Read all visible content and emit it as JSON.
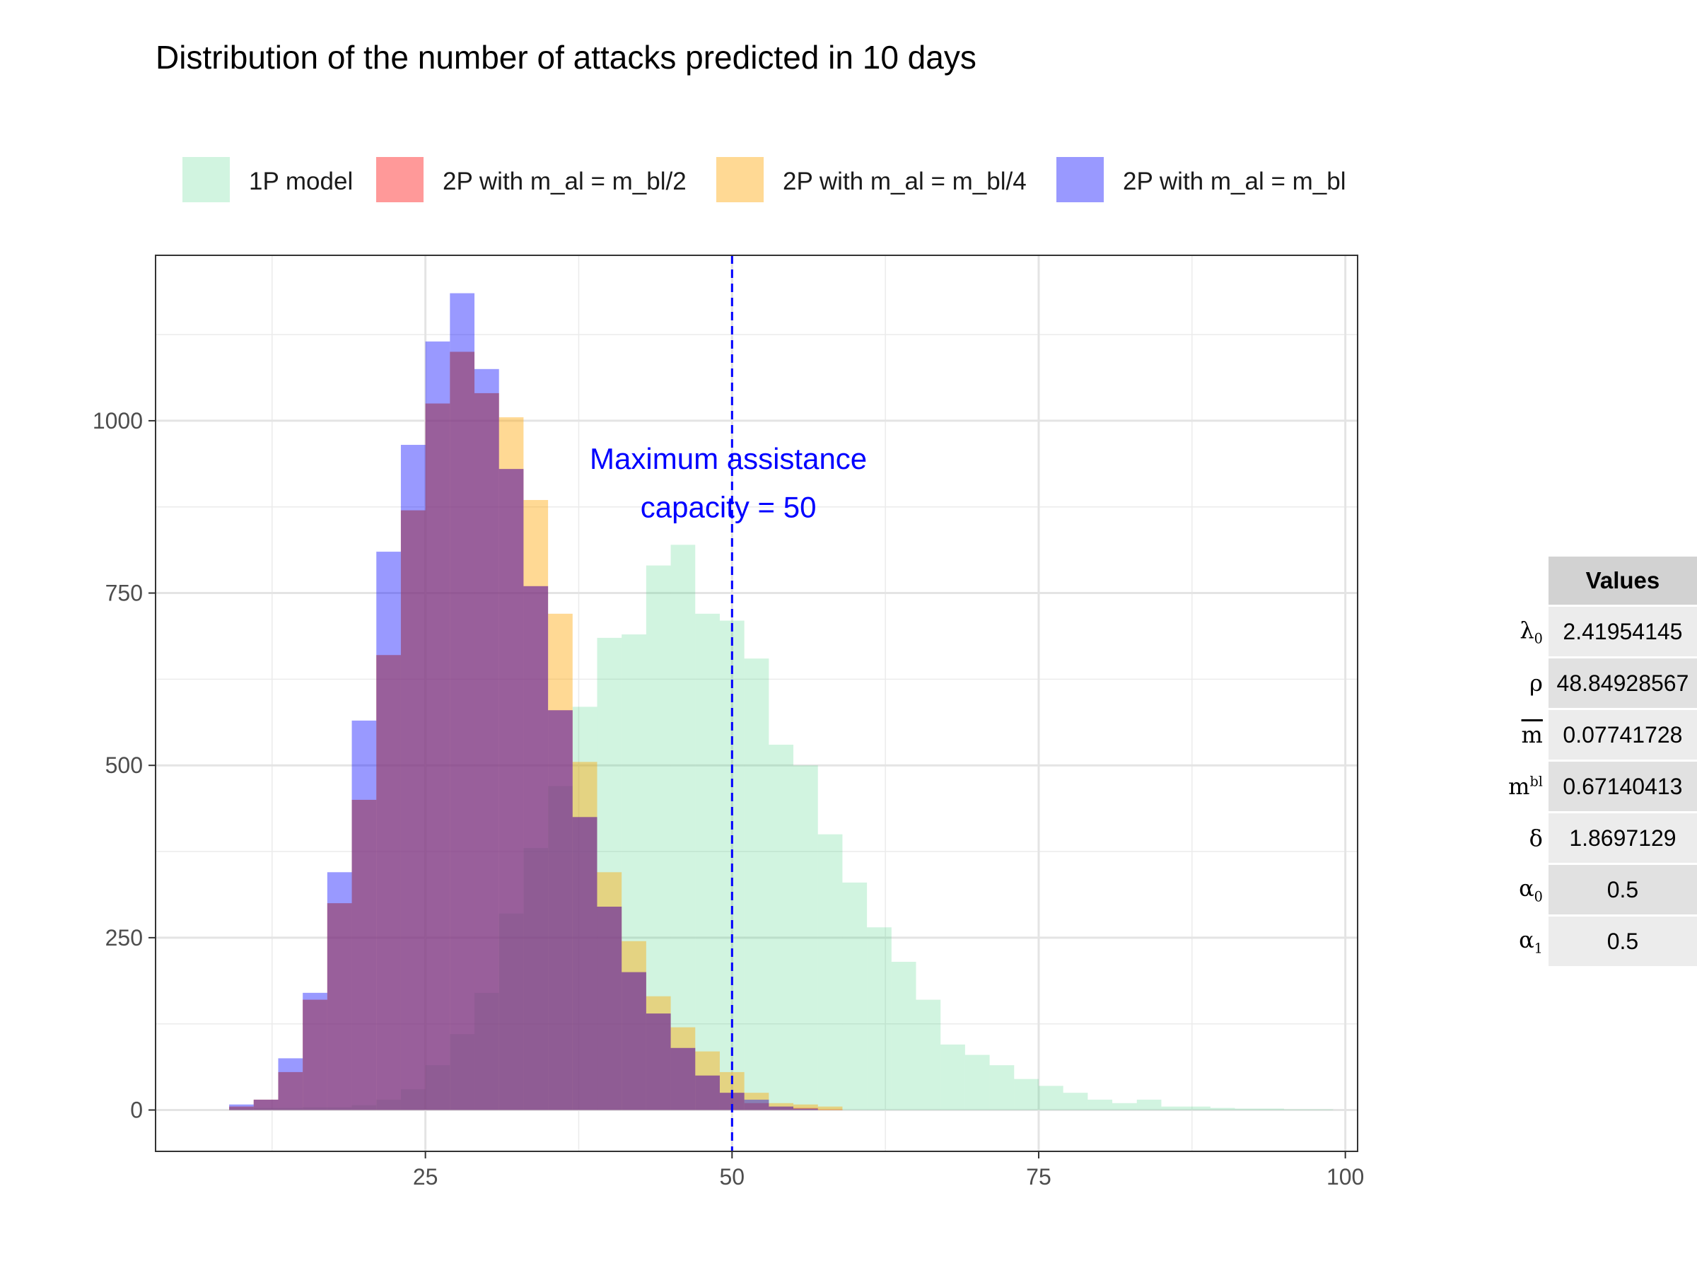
{
  "chart_data": {
    "type": "histogram",
    "title": "Distribution of the number of attacks predicted in 10 days",
    "xlabel": "",
    "ylabel": "",
    "xlim": [
      3,
      101
    ],
    "ylim": [
      -60,
      1240
    ],
    "x_ticks": [
      25,
      50,
      75,
      100
    ],
    "y_ticks": [
      0,
      250,
      500,
      750,
      1000
    ],
    "bin_width": 2,
    "legend_position": "top",
    "grid": true,
    "series": [
      {
        "name": "1P model",
        "color": "#2ecc71",
        "opacity": 0.22,
        "bins": [
          [
            10,
            2
          ],
          [
            12,
            3
          ],
          [
            14,
            3
          ],
          [
            16,
            4
          ],
          [
            18,
            4
          ],
          [
            20,
            7
          ],
          [
            22,
            15
          ],
          [
            24,
            30
          ],
          [
            26,
            65
          ],
          [
            28,
            110
          ],
          [
            30,
            170
          ],
          [
            32,
            285
          ],
          [
            34,
            380
          ],
          [
            36,
            470
          ],
          [
            38,
            585
          ],
          [
            40,
            685
          ],
          [
            42,
            690
          ],
          [
            44,
            790
          ],
          [
            46,
            820
          ],
          [
            48,
            720
          ],
          [
            50,
            710
          ],
          [
            52,
            655
          ],
          [
            54,
            530
          ],
          [
            56,
            500
          ],
          [
            58,
            400
          ],
          [
            60,
            330
          ],
          [
            62,
            265
          ],
          [
            64,
            215
          ],
          [
            66,
            160
          ],
          [
            68,
            95
          ],
          [
            70,
            80
          ],
          [
            72,
            65
          ],
          [
            74,
            45
          ],
          [
            76,
            35
          ],
          [
            78,
            25
          ],
          [
            80,
            15
          ],
          [
            82,
            10
          ],
          [
            84,
            15
          ],
          [
            86,
            5
          ],
          [
            88,
            5
          ],
          [
            90,
            3
          ],
          [
            92,
            2
          ],
          [
            94,
            2
          ],
          [
            96,
            1
          ],
          [
            98,
            1
          ]
        ]
      },
      {
        "name": "2P with m_al = m_bl/2",
        "color": "#ff0000",
        "opacity": 0.4,
        "bins": [
          [
            10,
            5
          ],
          [
            12,
            15
          ],
          [
            14,
            55
          ],
          [
            16,
            160
          ],
          [
            18,
            300
          ],
          [
            20,
            450
          ],
          [
            22,
            660
          ],
          [
            24,
            870
          ],
          [
            26,
            1025
          ],
          [
            28,
            1100
          ],
          [
            30,
            1040
          ],
          [
            32,
            930
          ],
          [
            34,
            760
          ],
          [
            36,
            580
          ],
          [
            38,
            425
          ],
          [
            40,
            295
          ],
          [
            42,
            200
          ],
          [
            44,
            140
          ],
          [
            46,
            90
          ],
          [
            48,
            50
          ],
          [
            50,
            25
          ],
          [
            52,
            10
          ],
          [
            54,
            5
          ],
          [
            56,
            3
          ],
          [
            58,
            1
          ]
        ]
      },
      {
        "name": "2P with m_al = m_bl/4",
        "color": "#ffa500",
        "opacity": 0.42,
        "bins": [
          [
            10,
            5
          ],
          [
            12,
            15
          ],
          [
            14,
            55
          ],
          [
            16,
            160
          ],
          [
            18,
            300
          ],
          [
            20,
            450
          ],
          [
            22,
            660
          ],
          [
            24,
            870
          ],
          [
            26,
            1025
          ],
          [
            28,
            1100
          ],
          [
            30,
            1040
          ],
          [
            32,
            1005
          ],
          [
            34,
            885
          ],
          [
            36,
            720
          ],
          [
            38,
            505
          ],
          [
            40,
            345
          ],
          [
            42,
            245
          ],
          [
            44,
            165
          ],
          [
            46,
            120
          ],
          [
            48,
            85
          ],
          [
            50,
            55
          ],
          [
            52,
            25
          ],
          [
            54,
            10
          ],
          [
            56,
            8
          ],
          [
            58,
            5
          ]
        ]
      },
      {
        "name": "2P with m_al = m_bl",
        "color": "#0000ff",
        "opacity": 0.4,
        "bins": [
          [
            10,
            8
          ],
          [
            12,
            15
          ],
          [
            14,
            75
          ],
          [
            16,
            170
          ],
          [
            18,
            345
          ],
          [
            20,
            565
          ],
          [
            22,
            810
          ],
          [
            24,
            965
          ],
          [
            26,
            1115
          ],
          [
            28,
            1185
          ],
          [
            30,
            1075
          ],
          [
            32,
            930
          ],
          [
            34,
            760
          ],
          [
            36,
            580
          ],
          [
            38,
            425
          ],
          [
            40,
            295
          ],
          [
            42,
            200
          ],
          [
            44,
            140
          ],
          [
            46,
            90
          ],
          [
            48,
            50
          ],
          [
            50,
            25
          ],
          [
            52,
            15
          ],
          [
            54,
            5
          ],
          [
            56,
            2
          ]
        ]
      }
    ],
    "annotation": {
      "x": 50,
      "line_style": "dashed",
      "color": "#0000ff",
      "text_line1": "Maximum assistance",
      "text_line2": "capacity = 50",
      "text_x": 49.7,
      "text_y1": 930,
      "text_y2": 860
    }
  },
  "table": {
    "header": "Values",
    "rows": [
      {
        "symbol": "λ",
        "sub": "0",
        "sup": "",
        "overline": false,
        "value": "2.41954145"
      },
      {
        "symbol": "ρ",
        "sub": "",
        "sup": "",
        "overline": false,
        "value": "48.84928567"
      },
      {
        "symbol": "m",
        "sub": "",
        "sup": "",
        "overline": true,
        "value": "0.07741728"
      },
      {
        "symbol": "m",
        "sub": "",
        "sup": "bl",
        "overline": false,
        "value": "0.67140413"
      },
      {
        "symbol": "δ",
        "sub": "",
        "sup": "",
        "overline": false,
        "value": "1.8697129"
      },
      {
        "symbol": "α",
        "sub": "0",
        "sup": "",
        "overline": false,
        "value": "0.5"
      },
      {
        "symbol": "α",
        "sub": "1",
        "sup": "",
        "overline": false,
        "value": "0.5"
      }
    ]
  }
}
